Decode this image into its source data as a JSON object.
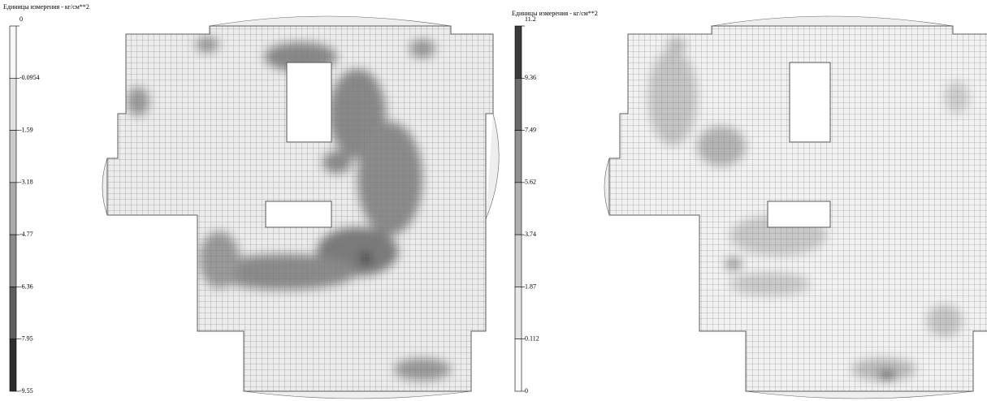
{
  "panels": [
    {
      "legend": {
        "title": "Единицы измерения - кг/см**2",
        "levels": [
          0,
          -0.0954,
          -1.59,
          -3.18,
          -4.77,
          -6.36,
          -7.95,
          -9.55
        ],
        "colors": [
          "#f7f7f7",
          "#e2e2e2",
          "#cacaca",
          "#aaaaaa",
          "#8a8a8a",
          "#5e5e5e",
          "#2e2e2e"
        ]
      }
    },
    {
      "legend": {
        "title": "Единицы измерения - кг/см**2",
        "levels": [
          11.2,
          9.36,
          7.49,
          5.62,
          3.74,
          1.87,
          0.112,
          0
        ],
        "colors": [
          "#3a3a3a",
          "#6a6a6a",
          "#909090",
          "#b0b0b0",
          "#cfcfcf",
          "#e6e6e6",
          "#fafafa"
        ]
      }
    }
  ]
}
